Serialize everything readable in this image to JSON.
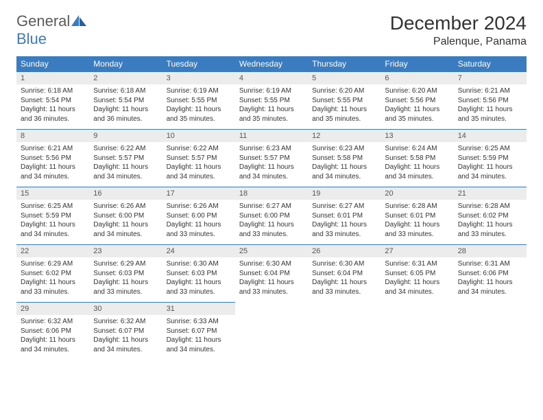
{
  "logo": {
    "text1": "General",
    "text2": "Blue"
  },
  "title": "December 2024",
  "location": "Palenque, Panama",
  "colors": {
    "header_bg": "#3b7bbf",
    "header_text": "#ffffff",
    "daynum_bg": "#ececec",
    "divider": "#3b7bbf",
    "text": "#333333",
    "logo_gray": "#5a5a5a",
    "logo_blue": "#3b7bbf"
  },
  "day_headers": [
    "Sunday",
    "Monday",
    "Tuesday",
    "Wednesday",
    "Thursday",
    "Friday",
    "Saturday"
  ],
  "weeks": [
    [
      {
        "num": "1",
        "sunrise": "Sunrise: 6:18 AM",
        "sunset": "Sunset: 5:54 PM",
        "daylight": "Daylight: 11 hours and 36 minutes."
      },
      {
        "num": "2",
        "sunrise": "Sunrise: 6:18 AM",
        "sunset": "Sunset: 5:54 PM",
        "daylight": "Daylight: 11 hours and 36 minutes."
      },
      {
        "num": "3",
        "sunrise": "Sunrise: 6:19 AM",
        "sunset": "Sunset: 5:55 PM",
        "daylight": "Daylight: 11 hours and 35 minutes."
      },
      {
        "num": "4",
        "sunrise": "Sunrise: 6:19 AM",
        "sunset": "Sunset: 5:55 PM",
        "daylight": "Daylight: 11 hours and 35 minutes."
      },
      {
        "num": "5",
        "sunrise": "Sunrise: 6:20 AM",
        "sunset": "Sunset: 5:55 PM",
        "daylight": "Daylight: 11 hours and 35 minutes."
      },
      {
        "num": "6",
        "sunrise": "Sunrise: 6:20 AM",
        "sunset": "Sunset: 5:56 PM",
        "daylight": "Daylight: 11 hours and 35 minutes."
      },
      {
        "num": "7",
        "sunrise": "Sunrise: 6:21 AM",
        "sunset": "Sunset: 5:56 PM",
        "daylight": "Daylight: 11 hours and 35 minutes."
      }
    ],
    [
      {
        "num": "8",
        "sunrise": "Sunrise: 6:21 AM",
        "sunset": "Sunset: 5:56 PM",
        "daylight": "Daylight: 11 hours and 34 minutes."
      },
      {
        "num": "9",
        "sunrise": "Sunrise: 6:22 AM",
        "sunset": "Sunset: 5:57 PM",
        "daylight": "Daylight: 11 hours and 34 minutes."
      },
      {
        "num": "10",
        "sunrise": "Sunrise: 6:22 AM",
        "sunset": "Sunset: 5:57 PM",
        "daylight": "Daylight: 11 hours and 34 minutes."
      },
      {
        "num": "11",
        "sunrise": "Sunrise: 6:23 AM",
        "sunset": "Sunset: 5:57 PM",
        "daylight": "Daylight: 11 hours and 34 minutes."
      },
      {
        "num": "12",
        "sunrise": "Sunrise: 6:23 AM",
        "sunset": "Sunset: 5:58 PM",
        "daylight": "Daylight: 11 hours and 34 minutes."
      },
      {
        "num": "13",
        "sunrise": "Sunrise: 6:24 AM",
        "sunset": "Sunset: 5:58 PM",
        "daylight": "Daylight: 11 hours and 34 minutes."
      },
      {
        "num": "14",
        "sunrise": "Sunrise: 6:25 AM",
        "sunset": "Sunset: 5:59 PM",
        "daylight": "Daylight: 11 hours and 34 minutes."
      }
    ],
    [
      {
        "num": "15",
        "sunrise": "Sunrise: 6:25 AM",
        "sunset": "Sunset: 5:59 PM",
        "daylight": "Daylight: 11 hours and 34 minutes."
      },
      {
        "num": "16",
        "sunrise": "Sunrise: 6:26 AM",
        "sunset": "Sunset: 6:00 PM",
        "daylight": "Daylight: 11 hours and 34 minutes."
      },
      {
        "num": "17",
        "sunrise": "Sunrise: 6:26 AM",
        "sunset": "Sunset: 6:00 PM",
        "daylight": "Daylight: 11 hours and 33 minutes."
      },
      {
        "num": "18",
        "sunrise": "Sunrise: 6:27 AM",
        "sunset": "Sunset: 6:00 PM",
        "daylight": "Daylight: 11 hours and 33 minutes."
      },
      {
        "num": "19",
        "sunrise": "Sunrise: 6:27 AM",
        "sunset": "Sunset: 6:01 PM",
        "daylight": "Daylight: 11 hours and 33 minutes."
      },
      {
        "num": "20",
        "sunrise": "Sunrise: 6:28 AM",
        "sunset": "Sunset: 6:01 PM",
        "daylight": "Daylight: 11 hours and 33 minutes."
      },
      {
        "num": "21",
        "sunrise": "Sunrise: 6:28 AM",
        "sunset": "Sunset: 6:02 PM",
        "daylight": "Daylight: 11 hours and 33 minutes."
      }
    ],
    [
      {
        "num": "22",
        "sunrise": "Sunrise: 6:29 AM",
        "sunset": "Sunset: 6:02 PM",
        "daylight": "Daylight: 11 hours and 33 minutes."
      },
      {
        "num": "23",
        "sunrise": "Sunrise: 6:29 AM",
        "sunset": "Sunset: 6:03 PM",
        "daylight": "Daylight: 11 hours and 33 minutes."
      },
      {
        "num": "24",
        "sunrise": "Sunrise: 6:30 AM",
        "sunset": "Sunset: 6:03 PM",
        "daylight": "Daylight: 11 hours and 33 minutes."
      },
      {
        "num": "25",
        "sunrise": "Sunrise: 6:30 AM",
        "sunset": "Sunset: 6:04 PM",
        "daylight": "Daylight: 11 hours and 33 minutes."
      },
      {
        "num": "26",
        "sunrise": "Sunrise: 6:30 AM",
        "sunset": "Sunset: 6:04 PM",
        "daylight": "Daylight: 11 hours and 33 minutes."
      },
      {
        "num": "27",
        "sunrise": "Sunrise: 6:31 AM",
        "sunset": "Sunset: 6:05 PM",
        "daylight": "Daylight: 11 hours and 34 minutes."
      },
      {
        "num": "28",
        "sunrise": "Sunrise: 6:31 AM",
        "sunset": "Sunset: 6:06 PM",
        "daylight": "Daylight: 11 hours and 34 minutes."
      }
    ],
    [
      {
        "num": "29",
        "sunrise": "Sunrise: 6:32 AM",
        "sunset": "Sunset: 6:06 PM",
        "daylight": "Daylight: 11 hours and 34 minutes."
      },
      {
        "num": "30",
        "sunrise": "Sunrise: 6:32 AM",
        "sunset": "Sunset: 6:07 PM",
        "daylight": "Daylight: 11 hours and 34 minutes."
      },
      {
        "num": "31",
        "sunrise": "Sunrise: 6:33 AM",
        "sunset": "Sunset: 6:07 PM",
        "daylight": "Daylight: 11 hours and 34 minutes."
      },
      {
        "empty": true
      },
      {
        "empty": true
      },
      {
        "empty": true
      },
      {
        "empty": true
      }
    ]
  ]
}
